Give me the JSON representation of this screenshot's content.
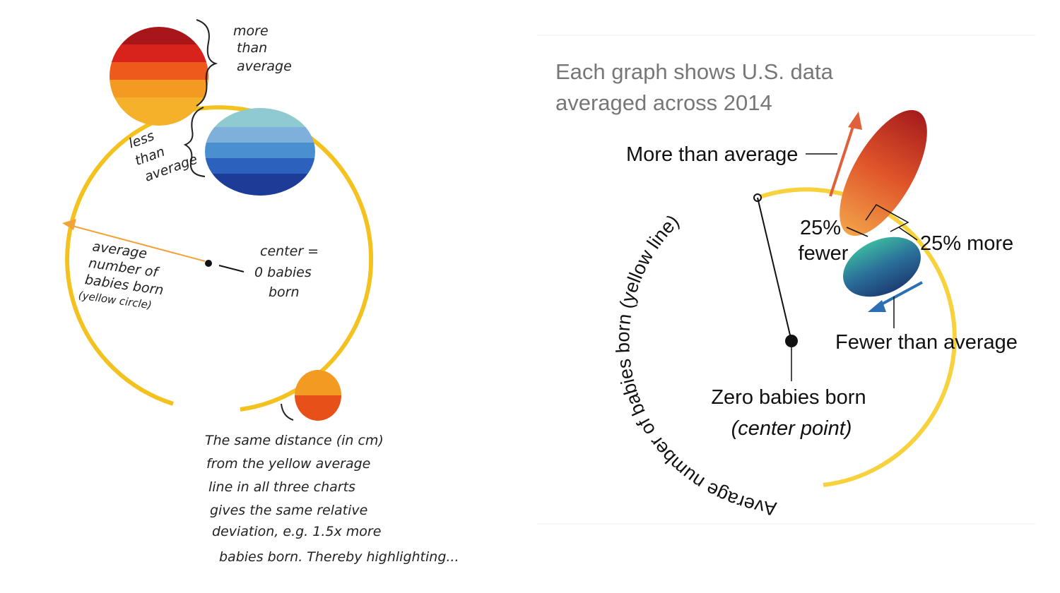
{
  "sketch": {
    "more_label": [
      "more",
      "than",
      "average"
    ],
    "less_label": [
      "less",
      "than",
      "average"
    ],
    "average_label": [
      "average",
      "number of",
      "babies born",
      "(yellow circle)"
    ],
    "center_label": [
      "center =",
      "0 babies",
      "born"
    ],
    "note": [
      "The same distance (in cm)",
      "from the yellow average",
      "line in all three charts",
      "gives the same relative",
      "deviation, e.g. 1.5x more",
      "babies born. Thereby highlighting..."
    ]
  },
  "explainer": {
    "title": [
      "Each graph shows U.S. data",
      "averaged across 2014"
    ],
    "more": "More than average",
    "fewer_25": [
      "25%",
      "fewer"
    ],
    "more_25": "25% more",
    "fewer": "Fewer than average",
    "zero": [
      "Zero babies born",
      "(center point)"
    ],
    "circle_label": "Average number of babies born (yellow line)"
  }
}
